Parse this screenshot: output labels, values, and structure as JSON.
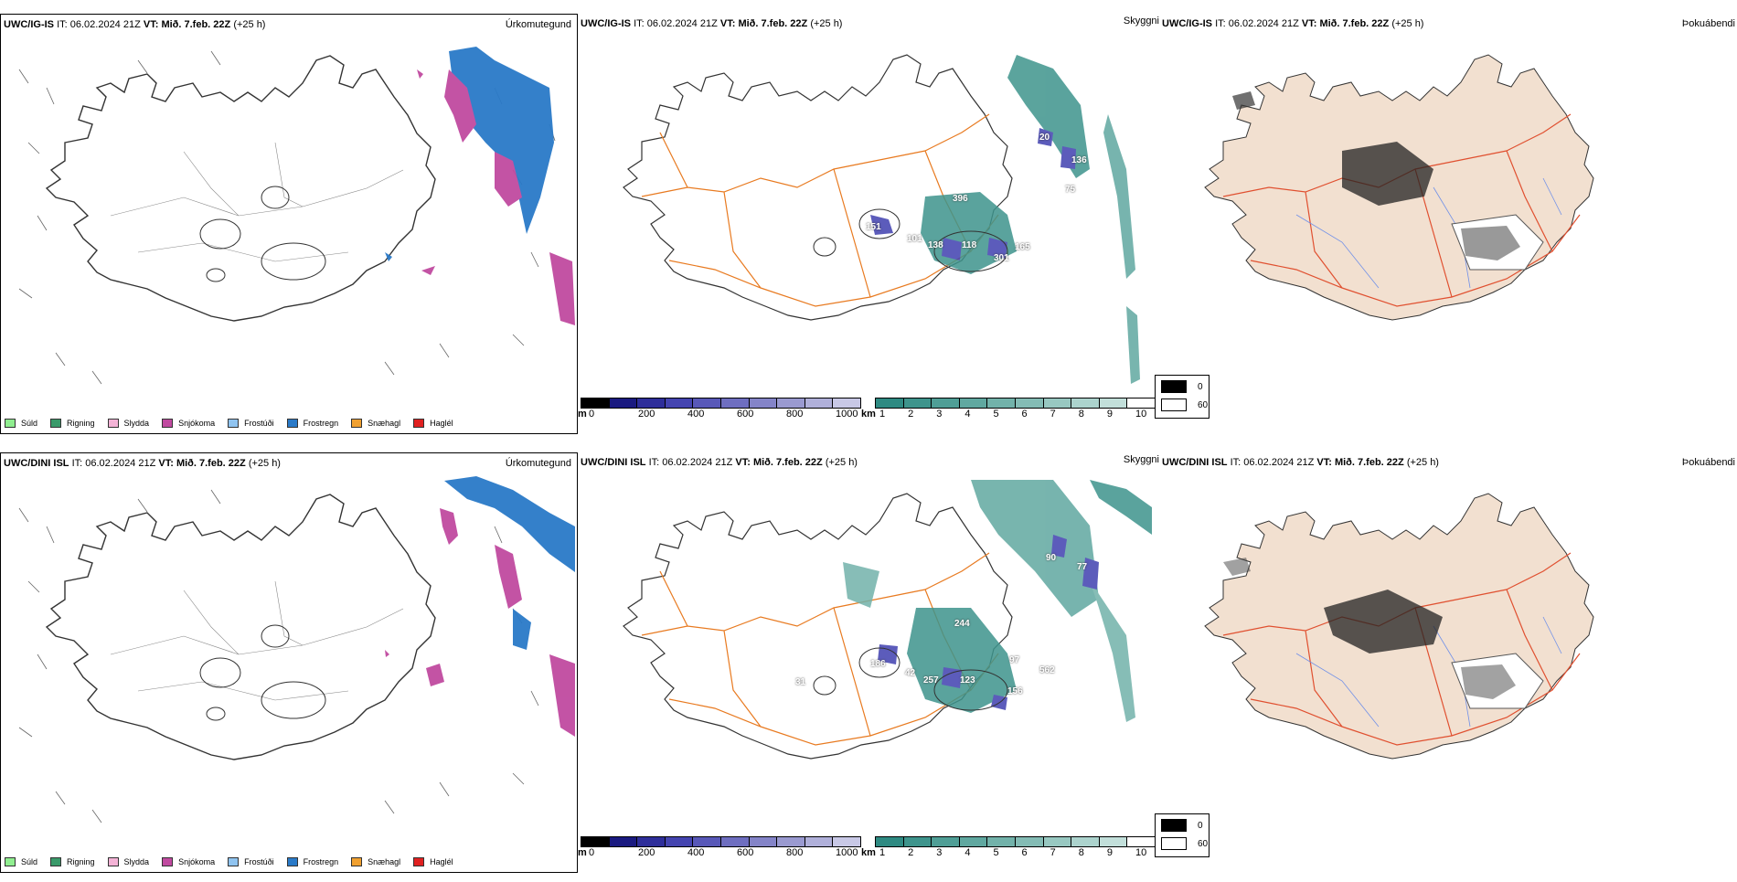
{
  "rows": [
    {
      "precip": {
        "model": "UWC/IG-IS",
        "it_label": "IT:",
        "it_value": "06.02.2024 21Z",
        "vt_label": "VT:",
        "vt_value": "Mið. 7.feb. 22Z",
        "offset": "(+25 h)",
        "name": "Úrkomutegund"
      },
      "vis": {
        "model": "UWC/IG-IS",
        "it_label": "IT:",
        "it_value": "06.02.2024 21Z",
        "vt_label": "VT:",
        "vt_value": "Mið. 7.feb. 22Z",
        "offset": "(+25 h)",
        "name": "Skyggni",
        "labels": [
          "20",
          "136",
          "396",
          "151",
          "101",
          "138",
          "118",
          "165",
          "301",
          "75"
        ]
      },
      "fog": {
        "model": "UWC/IG-IS",
        "it_label": "IT:",
        "it_value": "06.02.2024 21Z",
        "vt_label": "VT:",
        "vt_value": "Mið. 7.feb. 22Z",
        "offset": "(+25 h)",
        "name": "Þokuábendi"
      }
    },
    {
      "precip": {
        "model": "UWC/DINI ISL",
        "it_label": "IT:",
        "it_value": "06.02.2024 21Z",
        "vt_label": "VT:",
        "vt_value": "Mið. 7.feb. 22Z",
        "offset": "(+25 h)",
        "name": "Úrkomutegund"
      },
      "vis": {
        "model": "UWC/DINI ISL",
        "it_label": "IT:",
        "it_value": "06.02.2024 21Z",
        "vt_label": "VT:",
        "vt_value": "Mið. 7.feb. 22Z",
        "offset": "(+25 h)",
        "name": "Skyggni",
        "labels": [
          "90",
          "77",
          "244",
          "186",
          "31",
          "42",
          "257",
          "123",
          "97",
          "562",
          "156"
        ]
      },
      "fog": {
        "model": "UWC/DINI ISL",
        "it_label": "IT:",
        "it_value": "06.02.2024 21Z",
        "vt_label": "VT:",
        "vt_value": "Mið. 7.feb. 22Z",
        "offset": "(+25 h)",
        "name": "Þokuábendi"
      }
    }
  ],
  "precip_legend": [
    {
      "label": "Súld",
      "color": "#90ee90"
    },
    {
      "label": "Rigning",
      "color": "#3a9a6a"
    },
    {
      "label": "Slydda",
      "color": "#f4b3d6"
    },
    {
      "label": "Snjókoma",
      "color": "#c04aa0"
    },
    {
      "label": "Frostúði",
      "color": "#90c4f0"
    },
    {
      "label": "Frostregn",
      "color": "#2a7ac8"
    },
    {
      "label": "Snæhagl",
      "color": "#f0a030"
    },
    {
      "label": "Haglél",
      "color": "#e02020"
    }
  ],
  "ceiling_bar": {
    "unit": "m",
    "ticks": [
      "0",
      "200",
      "400",
      "600",
      "800",
      "1000"
    ],
    "colors": [
      "#000000",
      "#1a1a80",
      "#2e2e9a",
      "#4444b0",
      "#5858b8",
      "#6e6ec0",
      "#8484c8",
      "#9a9ad0",
      "#b0b0da",
      "#c8c8e6"
    ]
  },
  "vis_bar": {
    "unit": "km",
    "ticks": [
      "1",
      "2",
      "3",
      "4",
      "5",
      "6",
      "7",
      "8",
      "9",
      "10"
    ],
    "colors": [
      "#2e8a82",
      "#3e948c",
      "#4f9e96",
      "#60a8a0",
      "#72b2aa",
      "#84bcb5",
      "#98c8c1",
      "#acd3cd",
      "#c2dfda",
      "#ffffff"
    ]
  },
  "fog_legend": [
    {
      "label": "0",
      "color": "#000000"
    },
    {
      "label": "60",
      "color": "#ffffff"
    }
  ],
  "colors": {
    "land": "#f2e0d0",
    "roads": "#e87a20",
    "roads_fog": "#e05030",
    "rivers": "#7090e8",
    "snow_mag": "#c04aa0",
    "frostregn": "#2a7ac8",
    "vis_teal": "#3e948c",
    "vis_purple": "#4040b0"
  }
}
